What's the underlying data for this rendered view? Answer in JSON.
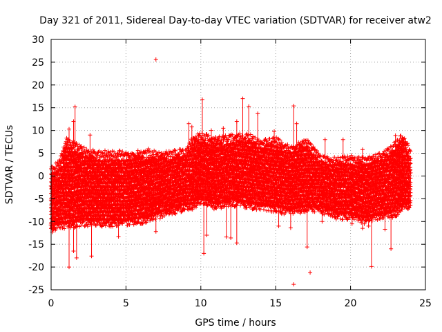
{
  "chart_data": {
    "type": "scatter",
    "title": "Day 321 of 2011, Sidereal Day-to-day VTEC variation (SDTVAR) for receiver atw2",
    "xlabel": "GPS time / hours",
    "ylabel": "SDTVAR / TECUs",
    "xlim": [
      0,
      25
    ],
    "ylim": [
      -25,
      30
    ],
    "grid": true,
    "marker": "+",
    "color": "#ff0000",
    "x_ticks": [
      0,
      5,
      10,
      15,
      20,
      25
    ],
    "y_ticks": [
      -25,
      -20,
      -15,
      -10,
      -5,
      0,
      5,
      10,
      15,
      20,
      25,
      30
    ],
    "series": [
      {
        "name": "SDTVAR",
        "envelope": {
          "hours": [
            0.0,
            0.5,
            1.0,
            1.5,
            2.0,
            3.0,
            4.0,
            5.0,
            6.0,
            7.0,
            8.0,
            9.0,
            9.5,
            10.0,
            11.0,
            12.0,
            13.0,
            14.0,
            15.0,
            16.0,
            17.0,
            18.0,
            19.0,
            20.0,
            21.0,
            22.0,
            23.0,
            23.5,
            24.0
          ],
          "upper_tecu": [
            1,
            1.5,
            7,
            6,
            5,
            4,
            4,
            4,
            4,
            4,
            4,
            4.5,
            7.5,
            8,
            7,
            7.5,
            8,
            6.5,
            7,
            5,
            7,
            3,
            2.5,
            3,
            2.5,
            3.5,
            6,
            8,
            4
          ],
          "lower_tecu": [
            -11,
            -10,
            -10,
            -10,
            -9.5,
            -9.5,
            -9.5,
            -9.5,
            -9,
            -8,
            -7,
            -6,
            -6,
            -4.5,
            -6,
            -5,
            -5.5,
            -6,
            -6.5,
            -7,
            -6.5,
            -6.5,
            -8,
            -8,
            -9,
            -8,
            -7.5,
            -6,
            -6
          ]
        },
        "outliers": [
          {
            "x": 7.0,
            "y": 25.6
          },
          {
            "x": 10.1,
            "y": 16.8
          },
          {
            "x": 1.6,
            "y": 15.2
          },
          {
            "x": 16.2,
            "y": 15.4
          },
          {
            "x": 12.8,
            "y": 17.0
          },
          {
            "x": 13.2,
            "y": 15.3
          },
          {
            "x": 13.8,
            "y": 13.7
          },
          {
            "x": 1.5,
            "y": 12.0
          },
          {
            "x": 1.2,
            "y": 10.3
          },
          {
            "x": 9.2,
            "y": 11.5
          },
          {
            "x": 9.4,
            "y": 10.8
          },
          {
            "x": 10.7,
            "y": 10.0
          },
          {
            "x": 11.5,
            "y": 10.5
          },
          {
            "x": 12.4,
            "y": 12.0
          },
          {
            "x": 14.9,
            "y": 9.8
          },
          {
            "x": 16.4,
            "y": 11.5
          },
          {
            "x": 18.3,
            "y": 8.0
          },
          {
            "x": 19.5,
            "y": 8.0
          },
          {
            "x": 20.8,
            "y": 5.8
          },
          {
            "x": 5.8,
            "y": 5.6
          },
          {
            "x": 6.5,
            "y": 6.0
          },
          {
            "x": 2.6,
            "y": 9.0
          },
          {
            "x": 7.0,
            "y": -12.2
          },
          {
            "x": 6.0,
            "y": -10.5
          },
          {
            "x": 8.3,
            "y": -8.3
          },
          {
            "x": 9.1,
            "y": -6.0
          },
          {
            "x": 4.5,
            "y": -13.3
          },
          {
            "x": 4.0,
            "y": -11.0
          },
          {
            "x": 2.7,
            "y": -17.6
          },
          {
            "x": 1.2,
            "y": -20.0
          },
          {
            "x": 1.5,
            "y": -16.5
          },
          {
            "x": 1.7,
            "y": -18.0
          },
          {
            "x": 0.1,
            "y": -11.8
          },
          {
            "x": 10.2,
            "y": -17.0
          },
          {
            "x": 10.4,
            "y": -13.0
          },
          {
            "x": 11.7,
            "y": -13.4
          },
          {
            "x": 12.0,
            "y": -13.6
          },
          {
            "x": 12.4,
            "y": -14.7
          },
          {
            "x": 15.2,
            "y": -11.0
          },
          {
            "x": 16.0,
            "y": -11.4
          },
          {
            "x": 16.2,
            "y": -23.8
          },
          {
            "x": 17.3,
            "y": -21.2
          },
          {
            "x": 17.1,
            "y": -15.6
          },
          {
            "x": 18.1,
            "y": -10.0
          },
          {
            "x": 20.8,
            "y": -11.5
          },
          {
            "x": 21.2,
            "y": -11.0
          },
          {
            "x": 21.4,
            "y": -19.9
          },
          {
            "x": 22.7,
            "y": -16.0
          },
          {
            "x": 22.3,
            "y": -11.7
          },
          {
            "x": 20.1,
            "y": -10.5
          },
          {
            "x": 20.5,
            "y": -9.8
          },
          {
            "x": 23.9,
            "y": -7.0
          },
          {
            "x": 23.0,
            "y": 8.9
          },
          {
            "x": 22.2,
            "y": 5.0
          },
          {
            "x": 21.5,
            "y": 4.3
          },
          {
            "x": 24.0,
            "y": 3.9
          }
        ]
      }
    ]
  }
}
